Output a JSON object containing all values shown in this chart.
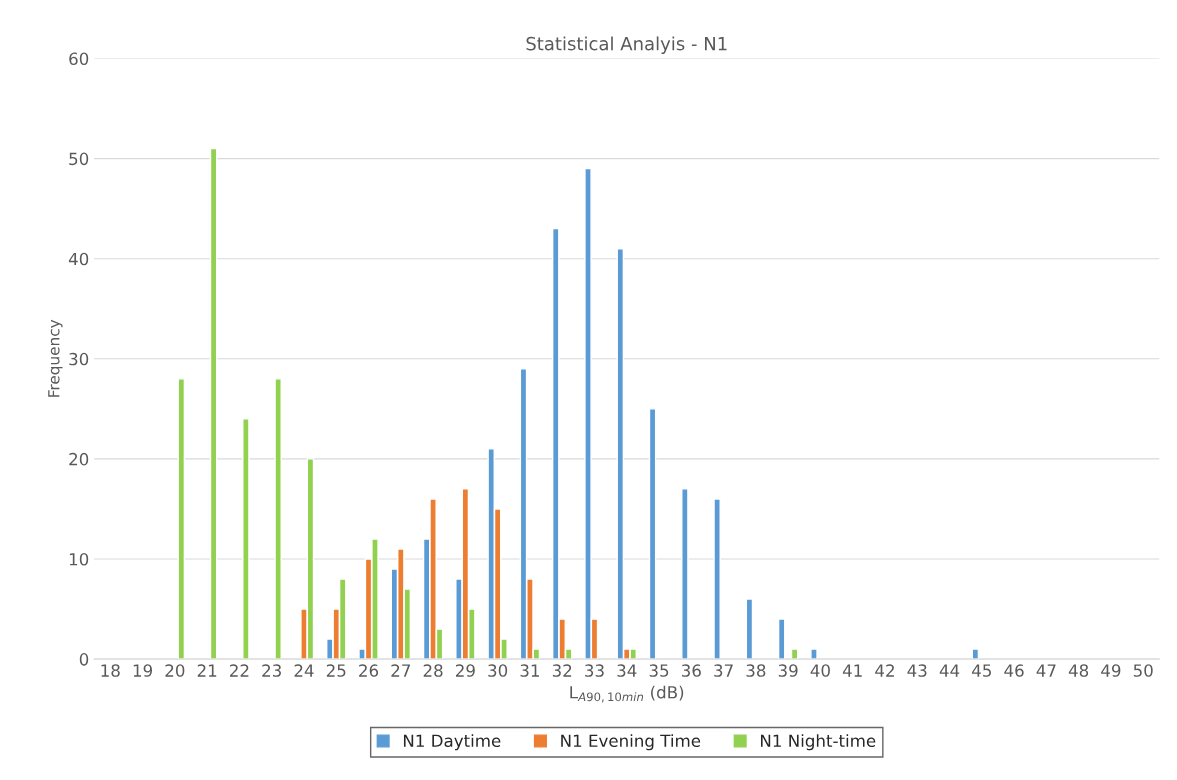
{
  "chart_data": {
    "type": "bar",
    "title": "Statistical Analyis - N1",
    "xlabel": "L$_{A90,10min}$ (dB)",
    "ylabel": "Frequency",
    "categories": [
      "18",
      "19",
      "20",
      "21",
      "22",
      "23",
      "24",
      "25",
      "26",
      "27",
      "28",
      "29",
      "30",
      "31",
      "32",
      "33",
      "34",
      "35",
      "36",
      "37",
      "38",
      "39",
      "40",
      "41",
      "42",
      "43",
      "44",
      "45",
      "46",
      "47",
      "48",
      "49",
      "50"
    ],
    "series": [
      {
        "name": "N1 Daytime",
        "color": "#5b9bd5",
        "values": [
          0,
          0,
          0,
          0,
          0,
          0,
          0,
          2,
          1,
          9,
          12,
          8,
          21,
          29,
          43,
          49,
          41,
          25,
          17,
          16,
          6,
          4,
          1,
          0,
          0,
          0,
          0,
          1,
          0,
          0,
          0,
          0,
          0
        ]
      },
      {
        "name": "N1 Evening Time",
        "color": "#ed7d31",
        "values": [
          0,
          0,
          0,
          0,
          0,
          0,
          5,
          5,
          10,
          11,
          16,
          17,
          15,
          8,
          4,
          4,
          1,
          0,
          0,
          0,
          0,
          0,
          0,
          0,
          0,
          0,
          0,
          0,
          0,
          0,
          0,
          0,
          0
        ]
      },
      {
        "name": "N1 Night-time",
        "color": "#92d050",
        "values": [
          0,
          0,
          28,
          51,
          24,
          28,
          20,
          8,
          12,
          7,
          3,
          5,
          2,
          1,
          1,
          0,
          1,
          0,
          0,
          0,
          0,
          1,
          0,
          0,
          0,
          0,
          0,
          0,
          0,
          0,
          0,
          0,
          0
        ]
      }
    ],
    "ylim": [
      0,
      60
    ],
    "yticks": [
      0,
      10,
      20,
      30,
      40,
      50,
      60
    ],
    "grid": "y",
    "legend": "bottom"
  }
}
